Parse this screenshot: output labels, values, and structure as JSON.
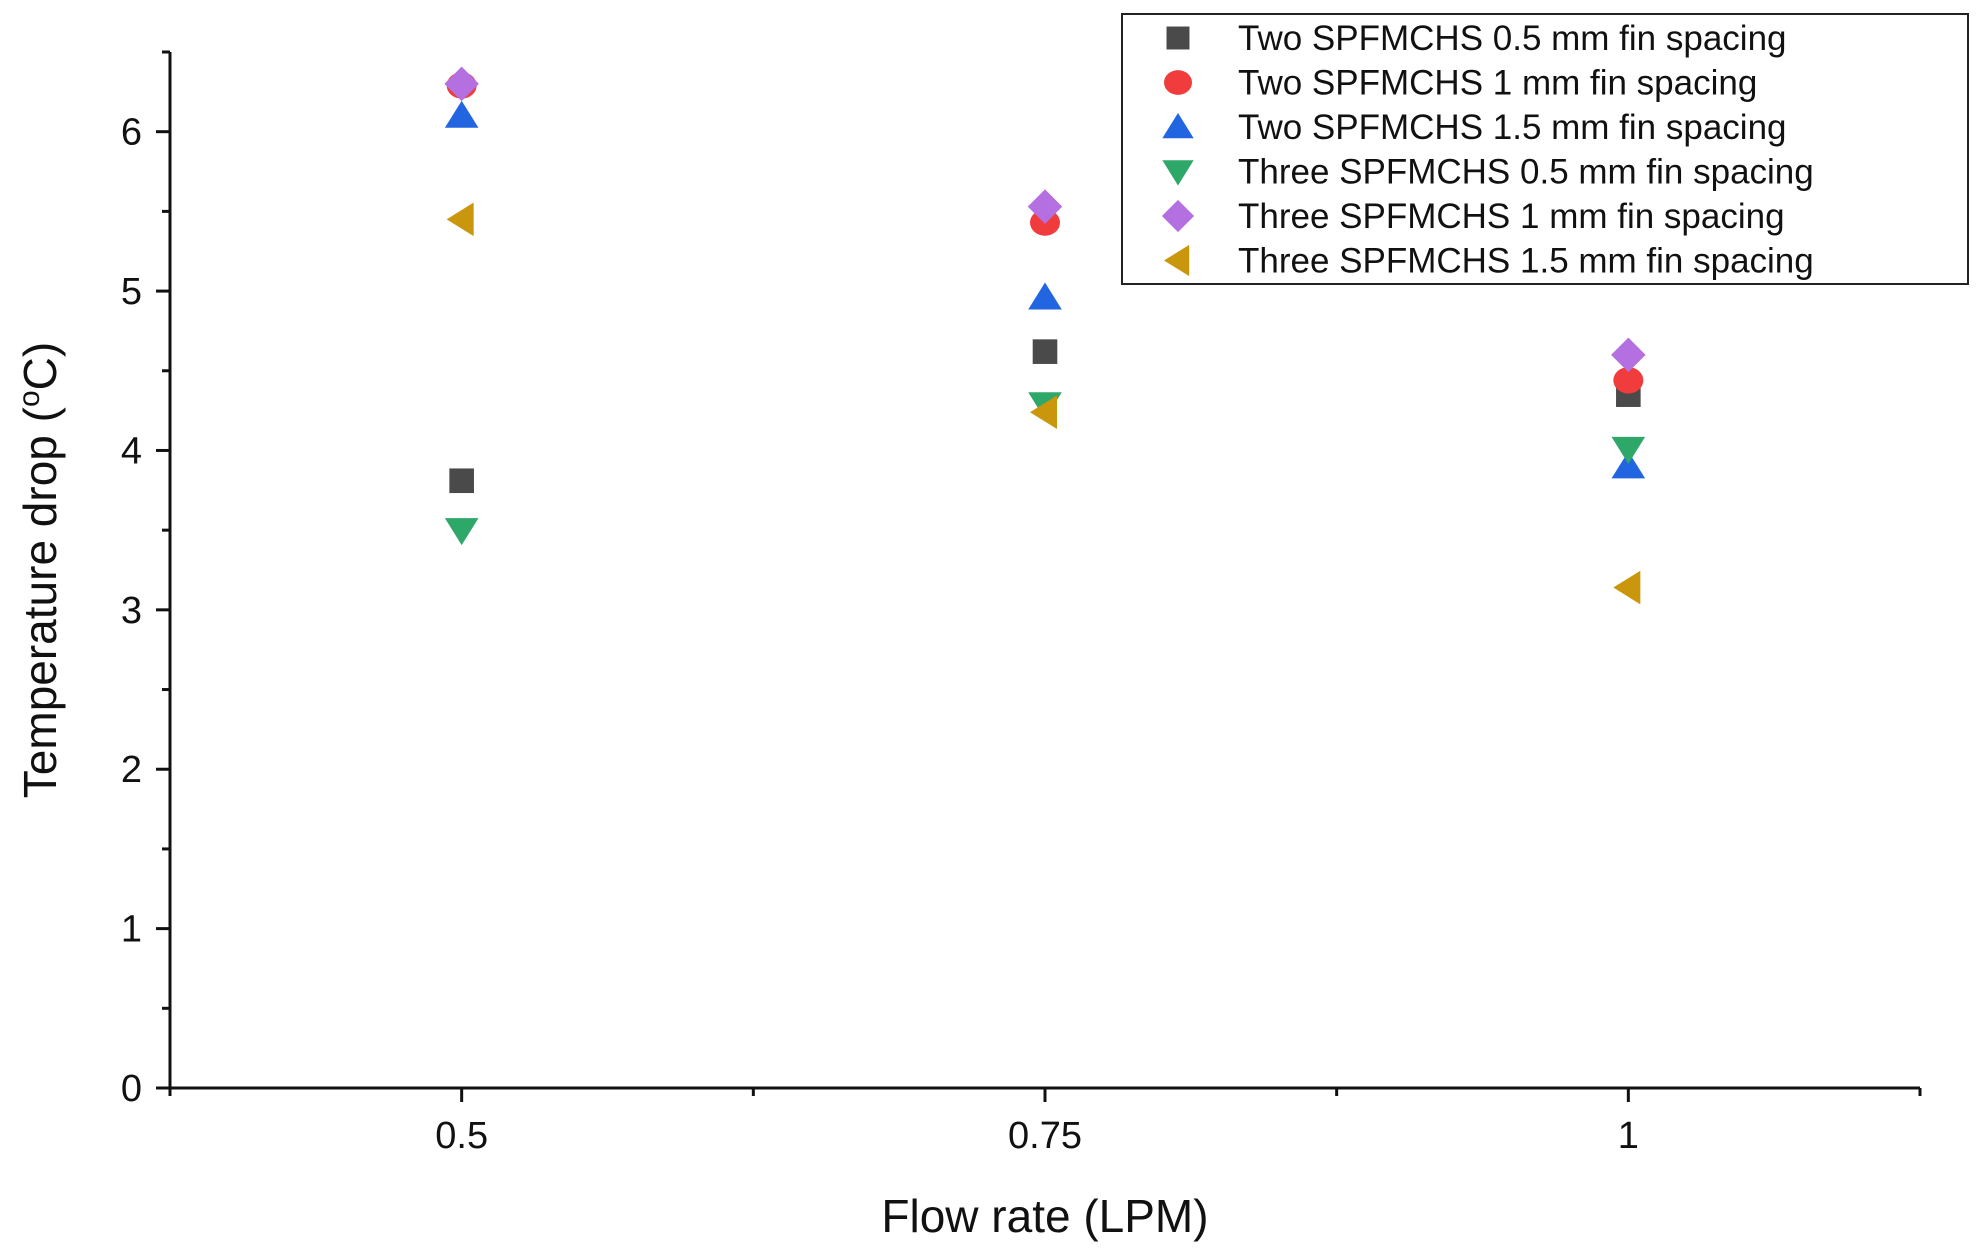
{
  "chart_data": {
    "type": "scatter",
    "title": "",
    "xlabel": "Flow rate (LPM)",
    "ylabel": {
      "pre": "Temperature drop (",
      "sup": "o",
      "post": "C)"
    },
    "x": [
      0.5,
      0.75,
      1
    ],
    "xticklabels": [
      "0.5",
      "0.75",
      "1"
    ],
    "xlim": [
      0.375,
      1.125
    ],
    "ylim": [
      0,
      6.5
    ],
    "yticks": [
      0,
      1,
      2,
      3,
      4,
      5,
      6
    ],
    "yticklabels": [
      "0",
      "1",
      "2",
      "3",
      "4",
      "5",
      "6"
    ],
    "grid": false,
    "legend_position": "top-right",
    "series": [
      {
        "name": "Two SPFMCHS 0.5 mm fin spacing",
        "marker": "square",
        "color": "#4a4a4a",
        "values": [
          3.81,
          4.62,
          4.35
        ]
      },
      {
        "name": "Two SPFMCHS 1 mm fin spacing",
        "marker": "circle",
        "color": "#f03c3c",
        "values": [
          6.29,
          5.43,
          4.44
        ]
      },
      {
        "name": "Two SPFMCHS 1.5 mm fin spacing",
        "marker": "triangle-up",
        "color": "#2166e0",
        "values": [
          6.1,
          4.96,
          3.9
        ]
      },
      {
        "name": "Three SPFMCHS 0.5 mm fin spacing",
        "marker": "triangle-down",
        "color": "#2ea868",
        "values": [
          3.5,
          4.29,
          4.01
        ]
      },
      {
        "name": "Three SPFMCHS 1 mm fin spacing",
        "marker": "diamond",
        "color": "#b46fe0",
        "values": [
          6.3,
          5.53,
          4.6
        ]
      },
      {
        "name": "Three SPFMCHS 1.5 mm fin spacing",
        "marker": "triangle-left",
        "color": "#c9960c",
        "values": [
          5.45,
          4.24,
          3.14
        ]
      }
    ]
  }
}
